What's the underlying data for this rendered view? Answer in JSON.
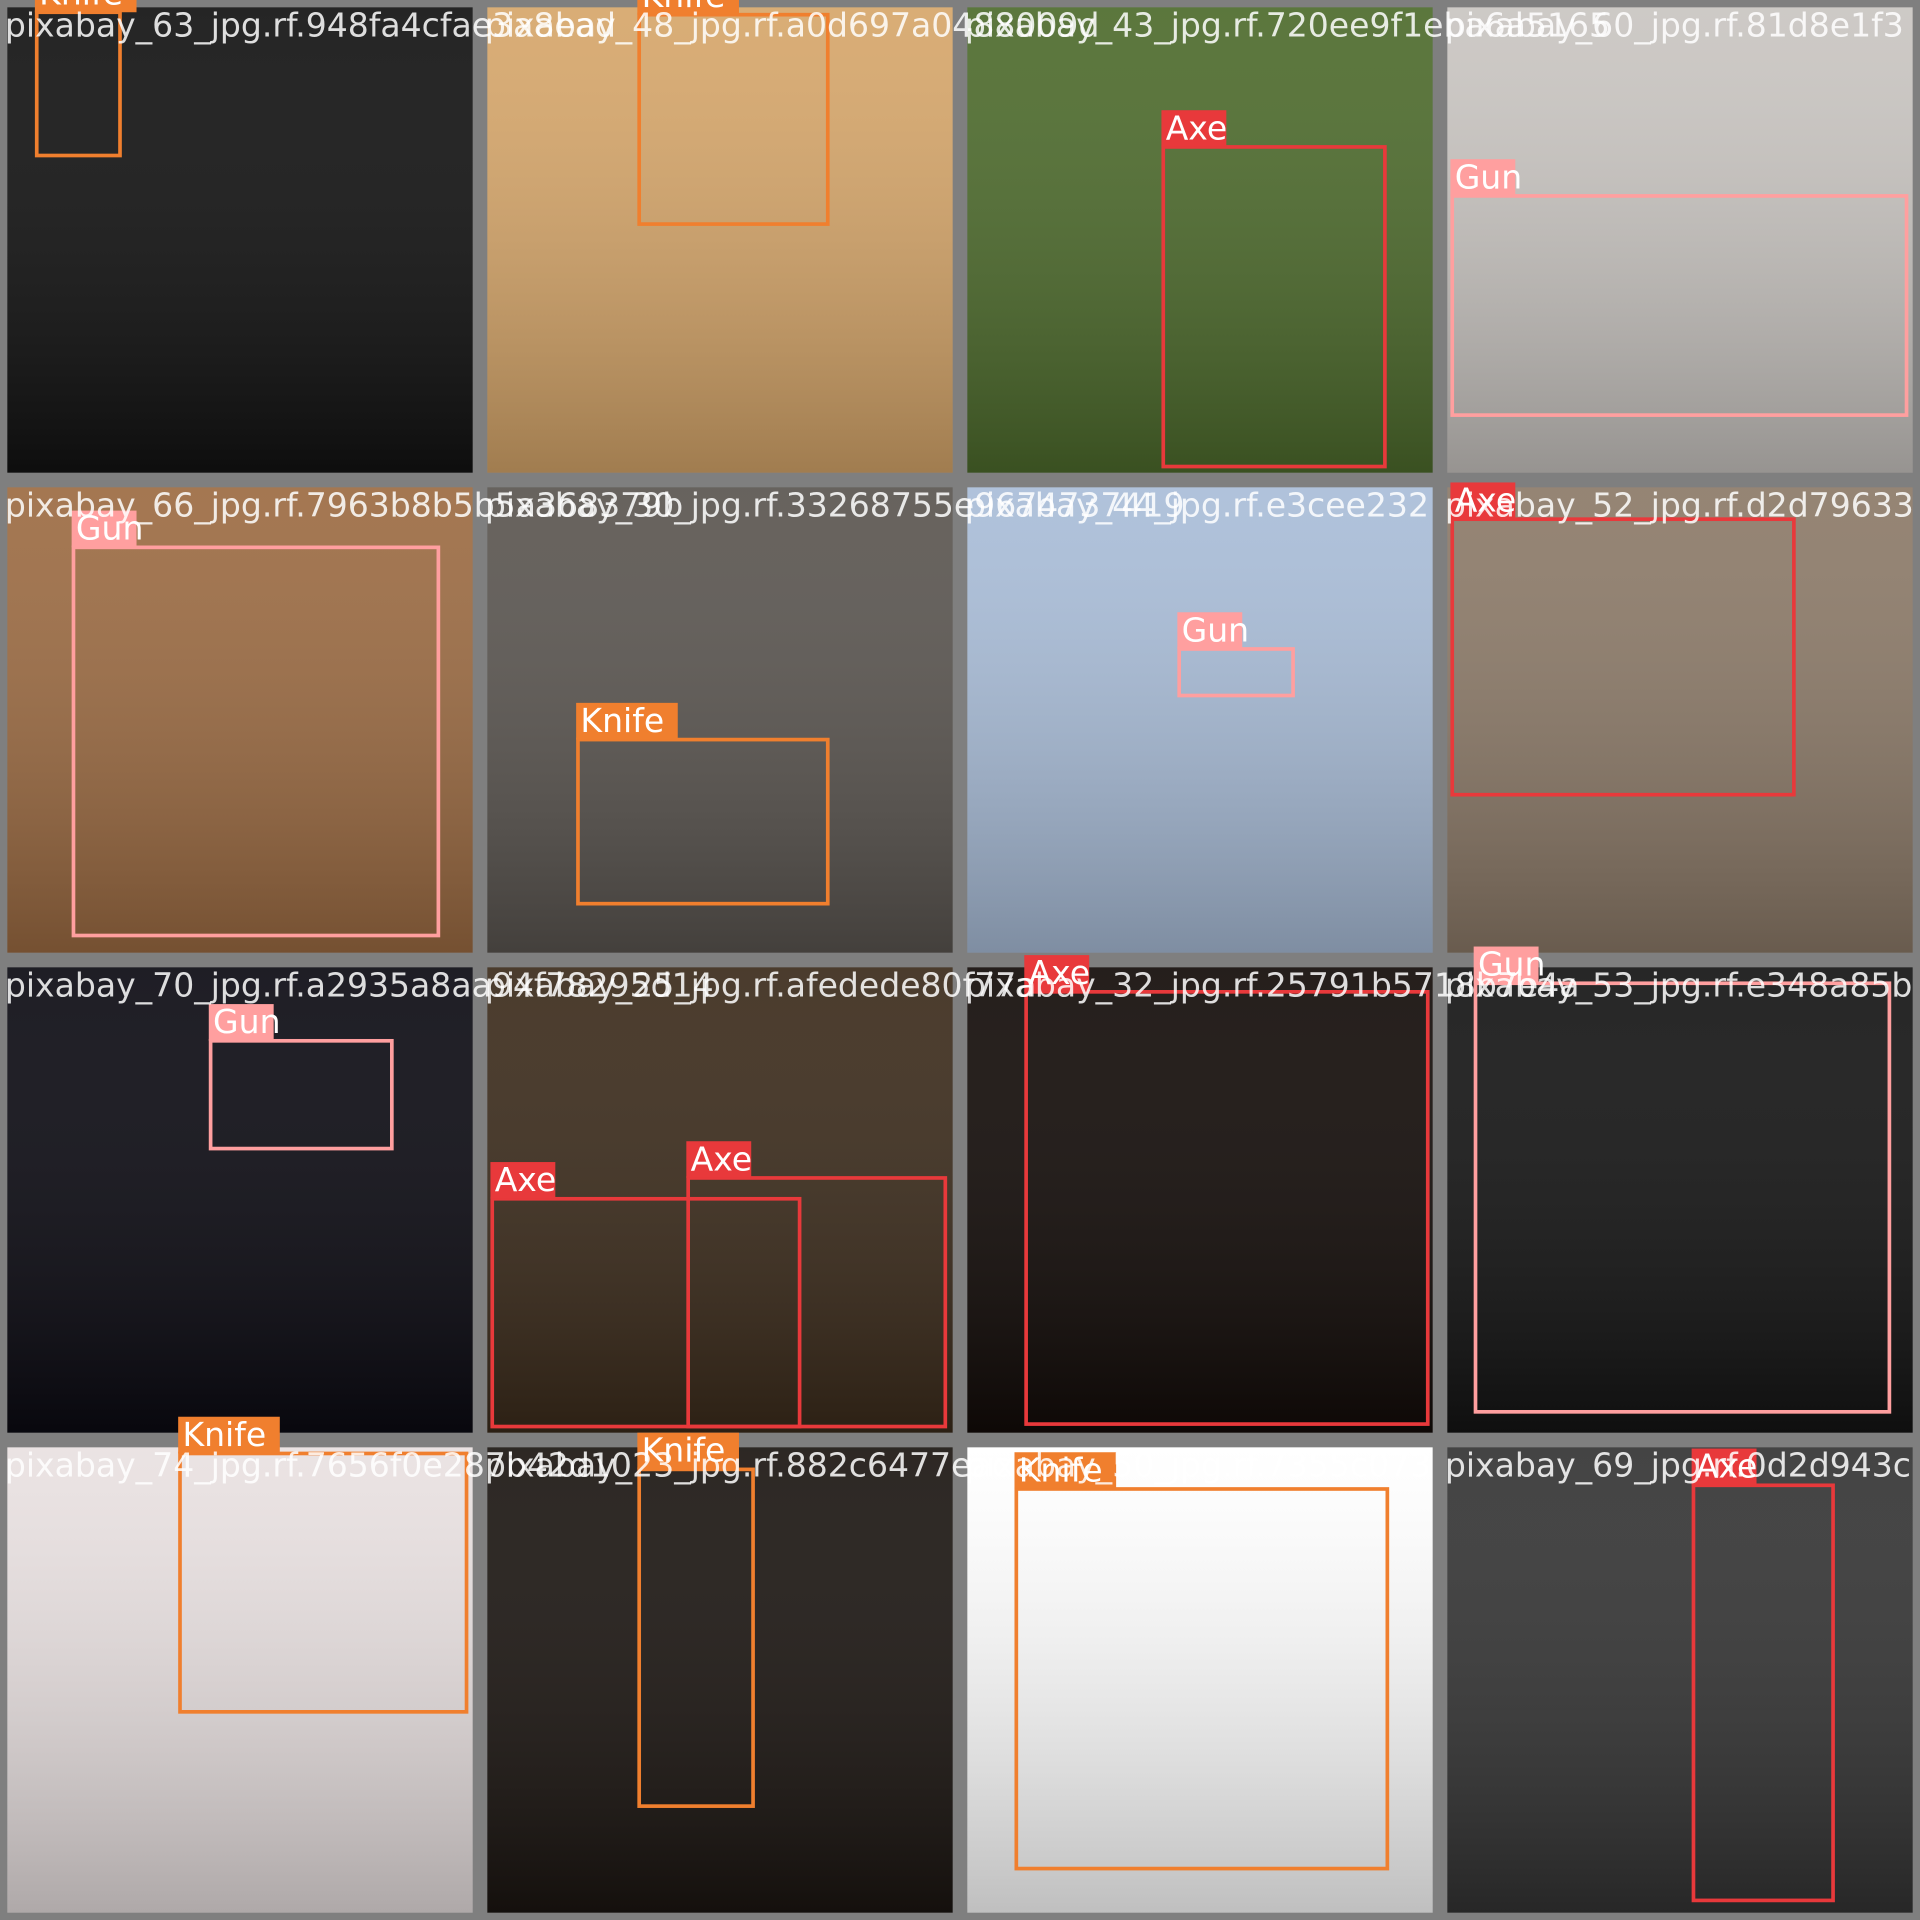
{
  "tiles": [
    {
      "filename": "pixabay_63_jpg.rf.948fa4cfae3a8ead",
      "boxes": [
        {
          "label": "Knife"
        }
      ]
    },
    {
      "filename": "pixabay_48_jpg.rf.a0d697a0488009d",
      "boxes": [
        {
          "label": "Knife"
        }
      ]
    },
    {
      "filename": "pixabay_43_jpg.rf.720ee9f1eba6a5165",
      "boxes": [
        {
          "label": "Axe"
        }
      ]
    },
    {
      "filename": "pixabay_60_jpg.rf.81d8e1f3",
      "boxes": [
        {
          "label": "Gun"
        }
      ]
    },
    {
      "filename": "pixabay_66_jpg.rf.7963b8b5b5a368379b",
      "boxes": [
        {
          "label": "Gun"
        }
      ]
    },
    {
      "filename": "pixabay_30_jpg.rf.33268755e9674737419",
      "boxes": [
        {
          "label": "Knife"
        }
      ]
    },
    {
      "filename": "pixabay_44_jpg.rf.e3cee232",
      "boxes": [
        {
          "label": "Gun"
        }
      ]
    },
    {
      "filename": "pixabay_52_jpg.rf.d2d79633",
      "boxes": [
        {
          "label": "Axe"
        }
      ]
    },
    {
      "filename": "pixabay_70_jpg.rf.a2935a8aa94f78295d14",
      "boxes": [
        {
          "label": "Gun"
        }
      ]
    },
    {
      "filename": "pixabay_25_jpg.rf.afedede80f77a",
      "boxes": [
        {
          "label": "Axe"
        },
        {
          "label": "Axe"
        }
      ]
    },
    {
      "filename": "pixabay_32_jpg.rf.25791b5718b7e4a",
      "boxes": [
        {
          "label": "Axe"
        }
      ]
    },
    {
      "filename": "pixabay_53_jpg.rf.e348a85b",
      "boxes": [
        {
          "label": "Gun"
        }
      ]
    },
    {
      "filename": "pixabay_74_jpg.rf.7656f0e287b42d10",
      "boxes": [
        {
          "label": "Knife"
        }
      ]
    },
    {
      "filename": "pixabay_23_jpg.rf.882c6477eac",
      "boxes": [
        {
          "label": "Knife"
        }
      ]
    },
    {
      "filename": "pixabay_50_jpg.rf.7355c073",
      "boxes": [
        {
          "label": "Knife"
        }
      ]
    },
    {
      "filename": "pixabay_69_jpg.rf.0d2d943c",
      "boxes": [
        {
          "label": "Axe"
        }
      ]
    }
  ]
}
